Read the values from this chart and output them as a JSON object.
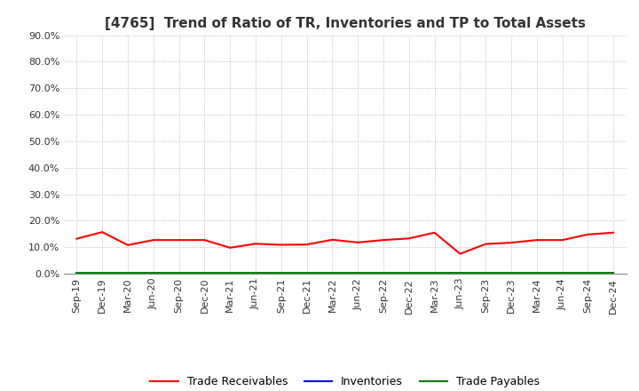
{
  "title": "[4765]  Trend of Ratio of TR, Inventories and TP to Total Assets",
  "x_labels": [
    "Sep-19",
    "Dec-19",
    "Mar-20",
    "Jun-20",
    "Sep-20",
    "Dec-20",
    "Mar-21",
    "Jun-21",
    "Sep-21",
    "Dec-21",
    "Mar-22",
    "Jun-22",
    "Sep-22",
    "Dec-22",
    "Mar-23",
    "Jun-23",
    "Sep-23",
    "Dec-23",
    "Mar-24",
    "Jun-24",
    "Sep-24",
    "Dec-24"
  ],
  "trade_receivables": [
    0.132,
    0.157,
    0.108,
    0.127,
    0.127,
    0.127,
    0.098,
    0.113,
    0.109,
    0.11,
    0.128,
    0.118,
    0.127,
    0.133,
    0.155,
    0.075,
    0.112,
    0.117,
    0.127,
    0.127,
    0.148,
    0.155
  ],
  "inventories": [
    0.0,
    0.0,
    0.0,
    0.0,
    0.0,
    0.0,
    0.0,
    0.0,
    0.0,
    0.0,
    0.0,
    0.0,
    0.0,
    0.0,
    0.0,
    0.0,
    0.0,
    0.0,
    0.0,
    0.0,
    0.0,
    0.0
  ],
  "trade_payables": [
    0.002,
    0.002,
    0.002,
    0.002,
    0.002,
    0.002,
    0.002,
    0.002,
    0.002,
    0.002,
    0.002,
    0.002,
    0.002,
    0.002,
    0.002,
    0.002,
    0.002,
    0.002,
    0.002,
    0.002,
    0.002,
    0.002
  ],
  "tr_color": "#FF0000",
  "inv_color": "#0000FF",
  "tp_color": "#008000",
  "ylim": [
    0.0,
    0.9
  ],
  "yticks": [
    0.0,
    0.1,
    0.2,
    0.3,
    0.4,
    0.5,
    0.6,
    0.7,
    0.8,
    0.9
  ],
  "background_color": "#FFFFFF",
  "grid_color": "#AAAAAA",
  "title_fontsize": 11,
  "tick_fontsize": 8,
  "legend_labels": [
    "Trade Receivables",
    "Inventories",
    "Trade Payables"
  ],
  "legend_fontsize": 9,
  "line_width": 1.5
}
